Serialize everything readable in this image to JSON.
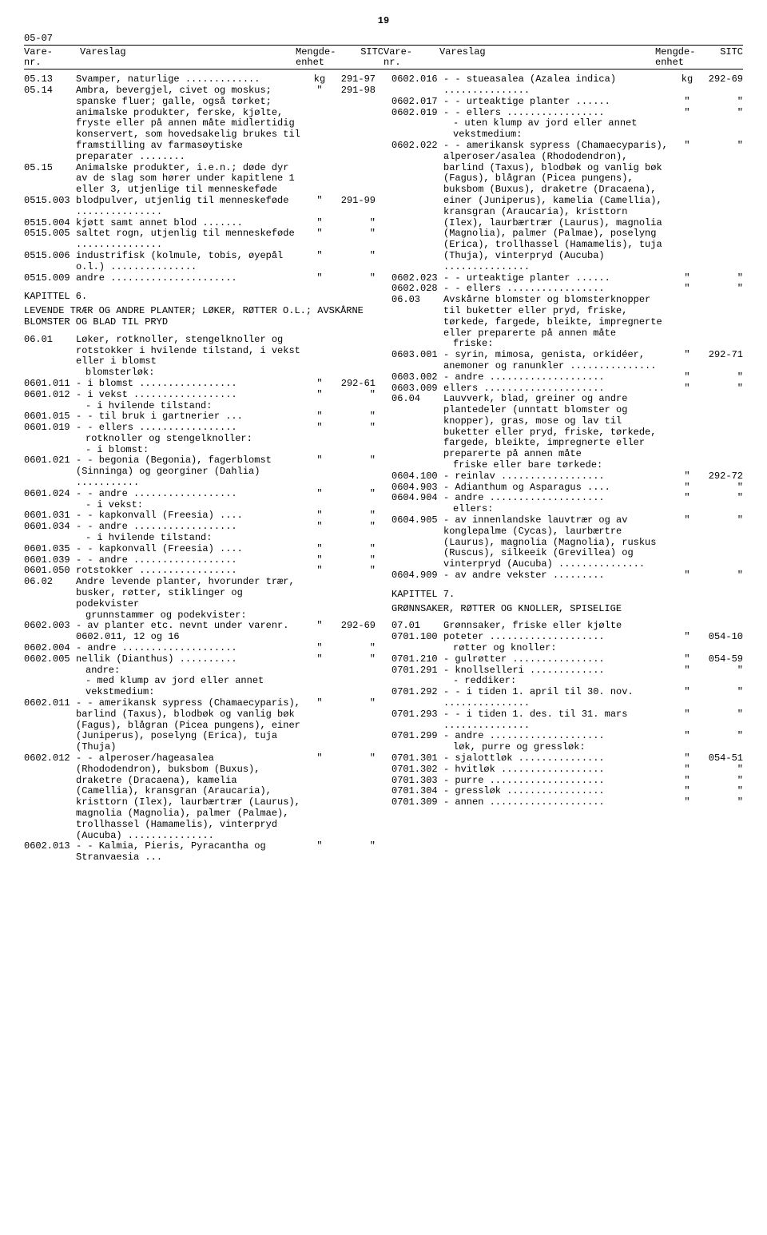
{
  "page_number": "19",
  "section_code": "05-07",
  "headers": {
    "varenr": "Vare-\nnr.",
    "vareslag": "Vareslag",
    "mengde": "Mengde-\nenhet",
    "sitc": "SITC"
  },
  "left": [
    {
      "code": "05.13",
      "desc": "Svamper, naturlige .............",
      "unit": "kg",
      "sitc": "291-97"
    },
    {
      "code": "05.14",
      "desc": "Ambra, bevergjel, civet og moskus; spanske fluer; galle, også tørket; animalske produkter, ferske, kjølte, fryste eller på annen måte midlertidig konservert, som hovedsakelig brukes til framstilling av farmasøytiske preparater ........",
      "unit": "\"",
      "sitc": "291-98"
    },
    {
      "code": "05.15",
      "desc": "Animalske produkter, i.e.n.; døde dyr av de slag som hører under kapitlene 1 eller 3, utjenlige til menneskeføde",
      "unit": "",
      "sitc": ""
    },
    {
      "code": "0515.003",
      "desc": "blodpulver, utjenlig til menneskeføde ...............",
      "unit": "\"",
      "sitc": "291-99"
    },
    {
      "code": "0515.004",
      "desc": "kjøtt samt annet blod .......",
      "unit": "\"",
      "sitc": "\""
    },
    {
      "code": "0515.005",
      "desc": "saltet rogn, utjenlig til menneskeføde ...............",
      "unit": "\"",
      "sitc": "\""
    },
    {
      "code": "0515.006",
      "desc": "industrifisk (kolmule, tobis, øyepål o.l.) ...............",
      "unit": "\"",
      "sitc": "\""
    },
    {
      "code": "0515.009",
      "desc": "andre ......................",
      "unit": "\"",
      "sitc": "\""
    }
  ],
  "chapter6": {
    "title": "KAPITTEL 6.",
    "subtitle": "LEVENDE TRÆR OG ANDRE PLANTER; LØKER, RØTTER O.L.; AVSKÅRNE BLOMSTER OG BLAD TIL PRYD"
  },
  "left2": [
    {
      "code": "06.01",
      "desc": "Løker, rotknoller, stengelknoller og rotstokker i hvilende tilstand, i vekst eller i blomst",
      "unit": "",
      "sitc": ""
    },
    {
      "code": "",
      "desc": "blomsterløk:",
      "unit": "",
      "sitc": "",
      "indent": 1
    },
    {
      "code": "0601.011",
      "desc": "- i blomst .................",
      "unit": "\"",
      "sitc": "292-61"
    },
    {
      "code": "0601.012",
      "desc": "- i vekst ..................",
      "unit": "\"",
      "sitc": "\""
    },
    {
      "code": "",
      "desc": "- i hvilende tilstand:",
      "unit": "",
      "sitc": "",
      "indent": 1
    },
    {
      "code": "0601.015",
      "desc": "- - til bruk i gartnerier ...",
      "unit": "\"",
      "sitc": "\""
    },
    {
      "code": "0601.019",
      "desc": "- - ellers .................",
      "unit": "\"",
      "sitc": "\""
    },
    {
      "code": "",
      "desc": "rotknoller og stengelknoller:",
      "unit": "",
      "sitc": "",
      "indent": 1
    },
    {
      "code": "",
      "desc": "- i blomst:",
      "unit": "",
      "sitc": "",
      "indent": 1
    },
    {
      "code": "0601.021",
      "desc": "- - begonia (Begonia), fagerblomst (Sinninga) og georginer (Dahlia) ...........",
      "unit": "\"",
      "sitc": "\""
    },
    {
      "code": "0601.024",
      "desc": "- - andre ..................",
      "unit": "\"",
      "sitc": "\""
    },
    {
      "code": "",
      "desc": "- i vekst:",
      "unit": "",
      "sitc": "",
      "indent": 1
    },
    {
      "code": "0601.031",
      "desc": "- - kapkonvall (Freesia) ....",
      "unit": "\"",
      "sitc": "\""
    },
    {
      "code": "0601.034",
      "desc": "- - andre ..................",
      "unit": "\"",
      "sitc": "\""
    },
    {
      "code": "",
      "desc": "- i hvilende tilstand:",
      "unit": "",
      "sitc": "",
      "indent": 1
    },
    {
      "code": "0601.035",
      "desc": "- - kapkonvall (Freesia) ....",
      "unit": "\"",
      "sitc": "\""
    },
    {
      "code": "0601.039",
      "desc": "- - andre ..................",
      "unit": "\"",
      "sitc": "\""
    },
    {
      "code": "0601.050",
      "desc": "rotstokker .................",
      "unit": "\"",
      "sitc": "\""
    },
    {
      "code": "06.02",
      "desc": "Andre levende planter, hvorunder trær, busker, røtter, stiklinger og podekvister",
      "unit": "",
      "sitc": ""
    },
    {
      "code": "",
      "desc": "grunnstammer og podekvister:",
      "unit": "",
      "sitc": "",
      "indent": 1
    },
    {
      "code": "0602.003",
      "desc": "- av planter etc. nevnt under varenr. 0602.011, 12 og 16",
      "unit": "\"",
      "sitc": "292-69"
    },
    {
      "code": "0602.004",
      "desc": "- andre ....................",
      "unit": "\"",
      "sitc": "\""
    },
    {
      "code": "0602.005",
      "desc": "nellik (Dianthus) ..........",
      "unit": "\"",
      "sitc": "\""
    },
    {
      "code": "",
      "desc": "andre:",
      "unit": "",
      "sitc": "",
      "indent": 1
    },
    {
      "code": "",
      "desc": "- med klump av jord eller annet vekstmedium:",
      "unit": "",
      "sitc": "",
      "indent": 1
    },
    {
      "code": "0602.011",
      "desc": "- - amerikansk sypress (Chamaecyparis), barlind (Taxus), blodbøk og vanlig bøk (Fagus), blågran (Picea pungens), einer (Juniperus), poselyng (Erica), tuja (Thuja)",
      "unit": "\"",
      "sitc": "\""
    },
    {
      "code": "0602.012",
      "desc": "- - alperoser/hageasalea (Rhododendron), buksbom (Buxus), draketre (Dracaena), kamelia (Camellia), kransgran (Araucaria), kristtorn (Ilex), laurbærtrær (Laurus), magnolia (Magnolia), palmer (Palmae), trollhassel (Hamamelis), vinterpryd (Aucuba) ...............",
      "unit": "\"",
      "sitc": "\""
    },
    {
      "code": "0602.013",
      "desc": "- - Kalmia, Pieris, Pyracantha og Stranvaesia ...",
      "unit": "\"",
      "sitc": "\""
    }
  ],
  "right": [
    {
      "code": "0602.016",
      "desc": "- - stueasalea (Azalea indica) ...............",
      "unit": "kg",
      "sitc": "292-69"
    },
    {
      "code": "0602.017",
      "desc": "- - urteaktige planter ......",
      "unit": "\"",
      "sitc": "\""
    },
    {
      "code": "0602.019",
      "desc": "- - ellers .................",
      "unit": "\"",
      "sitc": "\""
    },
    {
      "code": "",
      "desc": "- uten klump av jord eller annet vekstmedium:",
      "unit": "",
      "sitc": "",
      "indent": 1
    },
    {
      "code": "0602.022",
      "desc": "- - amerikansk sypress (Chamaecyparis), alperoser/asalea (Rhododendron), barlind (Taxus), blodbøk og vanlig bøk (Fagus), blågran (Picea pungens), buksbom (Buxus), draketre (Dracaena), einer (Juniperus), kamelia (Camellia), kransgran (Araucaria), kristtorn (Ilex), laurbærtrær (Laurus), magnolia (Magnolia), palmer (Palmae), poselyng (Erica), trollhassel (Hamamelis), tuja (Thuja), vinterpryd (Aucuba) ...............",
      "unit": "\"",
      "sitc": "\""
    },
    {
      "code": "0602.023",
      "desc": "- - urteaktige planter ......",
      "unit": "\"",
      "sitc": "\""
    },
    {
      "code": "0602.028",
      "desc": "- - ellers .................",
      "unit": "\"",
      "sitc": "\""
    },
    {
      "code": "06.03",
      "desc": "Avskårne blomster og blomsterknopper til buketter eller pryd, friske, tørkede, fargede, bleikte, impregnerte eller preparerte på annen måte",
      "unit": "",
      "sitc": ""
    },
    {
      "code": "",
      "desc": "friske:",
      "unit": "",
      "sitc": "",
      "indent": 1
    },
    {
      "code": "0603.001",
      "desc": "- syrin, mimosa, genista, orkidéer, anemoner og ranunkler ...............",
      "unit": "\"",
      "sitc": "292-71"
    },
    {
      "code": "0603.002",
      "desc": "- andre ....................",
      "unit": "\"",
      "sitc": "\""
    },
    {
      "code": "0603.009",
      "desc": "ellers .....................",
      "unit": "\"",
      "sitc": "\""
    },
    {
      "code": "06.04",
      "desc": "Lauvverk, blad, greiner og andre plantedeler (unntatt blomster og knopper), gras, mose og lav til buketter eller pryd, friske, tørkede, fargede, bleikte, impregnerte eller preparerte på annen måte",
      "unit": "",
      "sitc": ""
    },
    {
      "code": "",
      "desc": "friske eller bare tørkede:",
      "unit": "",
      "sitc": "",
      "indent": 1
    },
    {
      "code": "0604.100",
      "desc": "- reinlav ..................",
      "unit": "\"",
      "sitc": "292-72"
    },
    {
      "code": "0604.903",
      "desc": "- Adianthum og Asparagus ....",
      "unit": "\"",
      "sitc": "\""
    },
    {
      "code": "0604.904",
      "desc": "- andre ....................",
      "unit": "\"",
      "sitc": "\""
    },
    {
      "code": "",
      "desc": "ellers:",
      "unit": "",
      "sitc": "",
      "indent": 1
    },
    {
      "code": "0604.905",
      "desc": "- av innenlandske lauvtrær og av konglepalme (Cycas), laurbærtre (Laurus), magnolia (Magnolia), ruskus (Ruscus), silkeeik (Grevillea) og vinterpryd (Aucuba) ...............",
      "unit": "\"",
      "sitc": "\""
    },
    {
      "code": "0604.909",
      "desc": "- av andre vekster .........",
      "unit": "\"",
      "sitc": "\""
    }
  ],
  "chapter7": {
    "title": "KAPITTEL 7.",
    "subtitle": "GRØNNSAKER, RØTTER OG KNOLLER, SPISELIGE"
  },
  "right2": [
    {
      "code": "07.01",
      "desc": "Grønnsaker, friske eller kjølte",
      "unit": "",
      "sitc": ""
    },
    {
      "code": "0701.100",
      "desc": "poteter ....................",
      "unit": "\"",
      "sitc": "054-10"
    },
    {
      "code": "",
      "desc": "røtter og knoller:",
      "unit": "",
      "sitc": "",
      "indent": 1
    },
    {
      "code": "0701.210",
      "desc": "- gulrøtter ................",
      "unit": "\"",
      "sitc": "054-59"
    },
    {
      "code": "0701.291",
      "desc": "- knollselleri .............",
      "unit": "\"",
      "sitc": "\""
    },
    {
      "code": "",
      "desc": "- reddiker:",
      "unit": "",
      "sitc": "",
      "indent": 1
    },
    {
      "code": "0701.292",
      "desc": "- - i tiden 1. april til 30. nov. ...............",
      "unit": "\"",
      "sitc": "\""
    },
    {
      "code": "0701.293",
      "desc": "- - i tiden 1. des. til 31. mars ...............",
      "unit": "\"",
      "sitc": "\""
    },
    {
      "code": "0701.299",
      "desc": "- andre ....................",
      "unit": "\"",
      "sitc": "\""
    },
    {
      "code": "",
      "desc": "løk, purre og gressløk:",
      "unit": "",
      "sitc": "",
      "indent": 1
    },
    {
      "code": "0701.301",
      "desc": "- sjalottløk ...............",
      "unit": "\"",
      "sitc": "054-51"
    },
    {
      "code": "0701.302",
      "desc": "- hvitløk ..................",
      "unit": "\"",
      "sitc": "\""
    },
    {
      "code": "0701.303",
      "desc": "- purre ....................",
      "unit": "\"",
      "sitc": "\""
    },
    {
      "code": "0701.304",
      "desc": "- gressløk .................",
      "unit": "\"",
      "sitc": "\""
    },
    {
      "code": "0701.309",
      "desc": "- annen ....................",
      "unit": "\"",
      "sitc": "\""
    }
  ]
}
